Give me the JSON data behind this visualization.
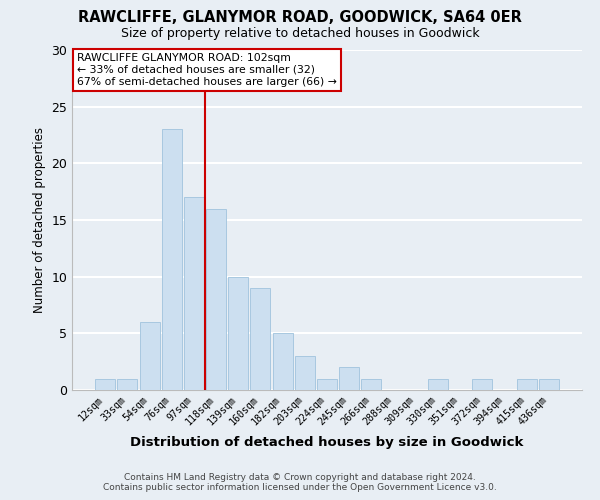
{
  "title": "RAWCLIFFE, GLANYMOR ROAD, GOODWICK, SA64 0ER",
  "subtitle": "Size of property relative to detached houses in Goodwick",
  "xlabel": "Distribution of detached houses by size in Goodwick",
  "ylabel": "Number of detached properties",
  "bar_color": "#ccdff0",
  "bar_edge_color": "#a8c8e0",
  "bin_labels": [
    "12sqm",
    "33sqm",
    "54sqm",
    "76sqm",
    "97sqm",
    "118sqm",
    "139sqm",
    "160sqm",
    "182sqm",
    "203sqm",
    "224sqm",
    "245sqm",
    "266sqm",
    "288sqm",
    "309sqm",
    "330sqm",
    "351sqm",
    "372sqm",
    "394sqm",
    "415sqm",
    "436sqm"
  ],
  "bar_heights": [
    1,
    1,
    6,
    23,
    17,
    16,
    10,
    9,
    5,
    3,
    1,
    2,
    1,
    0,
    0,
    1,
    0,
    1,
    0,
    1,
    1
  ],
  "vline_x": 4.5,
  "vline_color": "#cc0000",
  "ylim": [
    0,
    30
  ],
  "yticks": [
    0,
    5,
    10,
    15,
    20,
    25,
    30
  ],
  "annotation_title": "RAWCLIFFE GLANYMOR ROAD: 102sqm",
  "annotation_line1": "← 33% of detached houses are smaller (32)",
  "annotation_line2": "67% of semi-detached houses are larger (66) →",
  "footer1": "Contains HM Land Registry data © Crown copyright and database right 2024.",
  "footer2": "Contains public sector information licensed under the Open Government Licence v3.0.",
  "background_color": "#e8eef4",
  "grid_color": "#ffffff",
  "title_fontsize": 10.5,
  "subtitle_fontsize": 9
}
